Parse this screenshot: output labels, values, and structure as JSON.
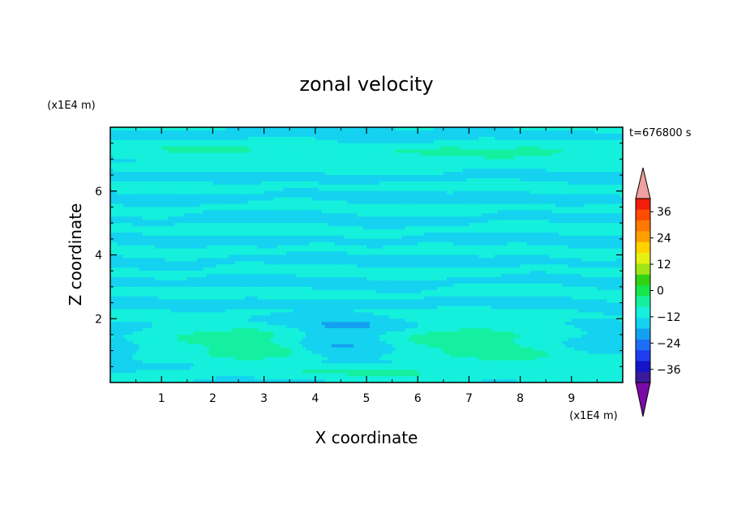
{
  "chart_data": {
    "type": "heatmap",
    "title": "zonal velocity",
    "xlabel": "X coordinate",
    "ylabel": "Z coordinate",
    "x_unit": "(x1E4 m)",
    "y_unit": "(x1E4 m)",
    "time_label": "t=676800 s",
    "xlim": [
      0,
      10
    ],
    "ylim": [
      0,
      8
    ],
    "x_ticks": [
      "1",
      "2",
      "3",
      "4",
      "5",
      "6",
      "7",
      "8",
      "9"
    ],
    "y_ticks": [
      "2",
      "4",
      "6"
    ],
    "colorbar": {
      "min": -42,
      "max": 42,
      "step": 6,
      "labels": [
        "36",
        "24",
        "12",
        "0",
        "−12",
        "−24",
        "−36"
      ],
      "extend": "both",
      "colors": [
        "#7a0aa8",
        "#3a1a9c",
        "#1414c8",
        "#1e3cf0",
        "#1e6ef5",
        "#14a0f0",
        "#14d2f0",
        "#14f0dc",
        "#14f0a0",
        "#14e64b",
        "#32d214",
        "#a0e614",
        "#e6f014",
        "#ffd200",
        "#ffa000",
        "#ff7800",
        "#ff4b00",
        "#f01e0a",
        "#f0a0a0"
      ]
    },
    "regions": [
      {
        "label": "surface positive band",
        "z_range": [
          7.0,
          7.7
        ],
        "value_range": [
          0,
          12
        ]
      },
      {
        "label": "near-bottom positive lobe x≈1-3.5",
        "x_range": [
          0.6,
          3.6
        ],
        "z_range": [
          0.6,
          1.9
        ],
        "value_range": [
          6,
          12
        ]
      },
      {
        "label": "near-bottom negative core x≈4-5.5",
        "x_range": [
          3.7,
          5.6
        ],
        "z_range": [
          0.8,
          2.0
        ],
        "value_range": [
          -12,
          -6
        ]
      },
      {
        "label": "near-bottom positive lobe x≈6-8",
        "x_range": [
          5.8,
          8.5
        ],
        "z_range": [
          0.5,
          2.0
        ],
        "value_range": [
          6,
          12
        ]
      }
    ]
  }
}
